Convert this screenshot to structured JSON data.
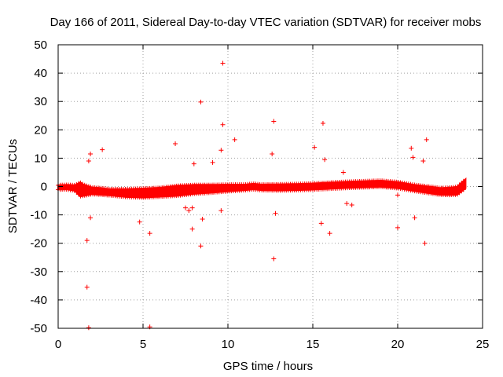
{
  "chart_data": {
    "type": "scatter",
    "title": "Day 166 of 2011, Sidereal Day-to-day VTEC variation (SDTVAR) for receiver mobs",
    "xlabel": "GPS time / hours",
    "ylabel": "SDTVAR / TECUs",
    "xlim": [
      0,
      25
    ],
    "ylim": [
      -50,
      50
    ],
    "xticks": [
      "0",
      "5",
      "10",
      "15",
      "20",
      "25"
    ],
    "yticks": [
      "50",
      "40",
      "30",
      "20",
      "10",
      "0",
      "-10",
      "-20",
      "-30",
      "-40",
      "-50"
    ],
    "grid": true,
    "marker": "+",
    "series_color": "#ff0000",
    "band": {
      "description": "dense continuous band of points across the day",
      "x": [
        0.0,
        0.5,
        1.0,
        1.3,
        1.5,
        2.0,
        2.5,
        3.0,
        4.0,
        5.0,
        6.0,
        7.0,
        8.0,
        9.0,
        10.0,
        11.0,
        11.5,
        12.0,
        13.0,
        14.0,
        15.0,
        16.0,
        17.0,
        18.0,
        19.0,
        20.0,
        21.0,
        22.0,
        22.5,
        23.0,
        23.5,
        24.0
      ],
      "center": [
        -0.3,
        -0.2,
        -0.5,
        -1.0,
        -1.3,
        -1.5,
        -1.7,
        -2.0,
        -2.3,
        -2.3,
        -2.0,
        -1.5,
        -1.0,
        -0.8,
        -0.5,
        -0.3,
        0.0,
        -0.3,
        -0.3,
        -0.2,
        0.0,
        0.3,
        0.6,
        0.8,
        1.0,
        0.5,
        -0.5,
        -1.3,
        -1.7,
        -1.7,
        -1.5,
        1.0
      ],
      "halfwidth": [
        0.8,
        0.8,
        1.0,
        2.5,
        2.0,
        1.2,
        1.2,
        1.1,
        1.4,
        1.6,
        1.6,
        1.8,
        1.6,
        1.4,
        1.2,
        1.0,
        1.0,
        1.0,
        1.1,
        1.1,
        1.1,
        1.1,
        1.1,
        1.1,
        1.1,
        1.1,
        1.1,
        1.2,
        1.2,
        1.3,
        1.4,
        1.6
      ]
    },
    "outliers": {
      "x": [
        9.7,
        8.4,
        12.7,
        9.7,
        15.6,
        10.4,
        6.9,
        9.6,
        2.6,
        1.9,
        15.1,
        21.7,
        20.8,
        1.8,
        8.0,
        9.1,
        20.9,
        15.7,
        21.5,
        12.6,
        16.8,
        12.8,
        9.6,
        7.5,
        7.9,
        17.0,
        17.3,
        16.0,
        7.9,
        20.0,
        4.8,
        8.5,
        1.9,
        21.0,
        20.0,
        1.7,
        5.4,
        15.5,
        7.7,
        8.4,
        21.6,
        12.7,
        1.7,
        1.8,
        5.4
      ],
      "y": [
        43.5,
        29.8,
        23.0,
        21.8,
        22.3,
        16.5,
        15.1,
        12.8,
        13.0,
        11.5,
        13.8,
        16.5,
        13.5,
        9.0,
        8.0,
        8.5,
        10.3,
        9.5,
        9.0,
        11.5,
        5.0,
        -9.5,
        -8.5,
        -7.5,
        -7.5,
        -6.0,
        -6.5,
        -16.5,
        -15.0,
        -14.5,
        -12.5,
        -11.5,
        -11.0,
        -11.0,
        -3.0,
        -19.0,
        -16.5,
        -13.0,
        -8.5,
        -21.0,
        -20.0,
        -25.5,
        -35.5,
        -49.8,
        -49.5
      ]
    }
  }
}
